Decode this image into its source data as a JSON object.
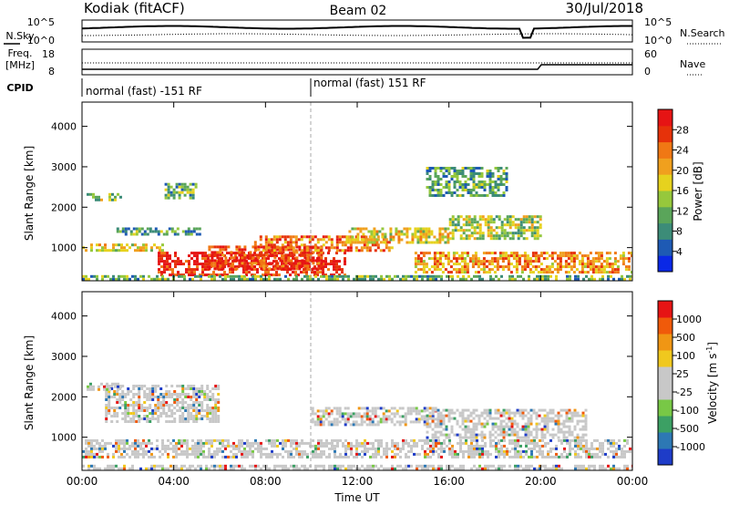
{
  "header": {
    "station": "Kodiak (fitACF)",
    "beam": "Beam 02",
    "date": "30/Jul/2018"
  },
  "top_panels": {
    "nsky_label": "N.Sky",
    "nsky_ticks": [
      "10^5",
      "10^0"
    ],
    "nsearch_label": "N.Search",
    "nsearch_ticks": [
      "10^5",
      "10^0"
    ],
    "freq_label": "Freq.",
    "freq_unit": "[MHz]",
    "freq_ticks": [
      "18",
      "8"
    ],
    "nave_label": "Nave",
    "nave_ticks": [
      "60",
      "0"
    ],
    "cpid_label": "CPID",
    "cpid_segments": [
      {
        "label": "normal (fast) -151 RF",
        "start_hour": 0,
        "end_hour": 10
      },
      {
        "label": "normal (fast) 151 RF",
        "start_hour": 10,
        "end_hour": 24
      }
    ]
  },
  "chart_data": [
    {
      "type": "heatmap",
      "name": "power",
      "ylabel": "Slant Range [km]",
      "y_ticks": [
        "1000",
        "2000",
        "3000",
        "4000"
      ],
      "ylim": [
        180,
        4600
      ],
      "xlim": [
        0,
        24
      ],
      "colorbar": {
        "label": "Power [dB]",
        "ticks": [
          "4",
          "8",
          "12",
          "16",
          "20",
          "24",
          "28"
        ],
        "range": [
          0,
          30
        ],
        "colors": [
          "#0a28e6",
          "#1e5ab4",
          "#3c8c78",
          "#5aa55a",
          "#96c83c",
          "#e6d21e",
          "#f0a01e",
          "#f07814",
          "#e6320a",
          "#e61414"
        ]
      },
      "echo_bands": [
        {
          "t0": 0.0,
          "t1": 3.5,
          "r0": 900,
          "r1": 1100,
          "level": 0.55
        },
        {
          "t0": 1.5,
          "t1": 5.2,
          "r0": 1350,
          "r1": 1500,
          "level": 0.3
        },
        {
          "t0": 0.2,
          "t1": 1.7,
          "r0": 2200,
          "r1": 2350,
          "level": 0.4
        },
        {
          "t0": 3.6,
          "t1": 5.0,
          "r0": 2200,
          "r1": 2600,
          "level": 0.35
        },
        {
          "t0": 3.3,
          "t1": 11.5,
          "r0": 300,
          "r1": 900,
          "level": 0.95
        },
        {
          "t0": 5.5,
          "t1": 10.5,
          "r0": 500,
          "r1": 1050,
          "level": 0.9
        },
        {
          "t0": 7.5,
          "t1": 13.5,
          "r0": 950,
          "r1": 1300,
          "level": 0.75
        },
        {
          "t0": 11.5,
          "t1": 16.0,
          "r0": 1100,
          "r1": 1500,
          "level": 0.55
        },
        {
          "t0": 14.5,
          "t1": 24.0,
          "r0": 400,
          "r1": 900,
          "level": 0.7
        },
        {
          "t0": 16.0,
          "t1": 20.0,
          "r0": 1200,
          "r1": 1800,
          "level": 0.45
        },
        {
          "t0": 15.0,
          "t1": 18.5,
          "r0": 2300,
          "r1": 3000,
          "level": 0.3
        },
        {
          "t0": 0.0,
          "t1": 24.0,
          "r0": 180,
          "r1": 320,
          "level": 0.35
        }
      ]
    },
    {
      "type": "heatmap",
      "name": "velocity",
      "ylabel": "Slant Range [km]",
      "y_ticks": [
        "1000",
        "2000",
        "3000",
        "4000"
      ],
      "ylim": [
        180,
        4600
      ],
      "xlim": [
        0,
        24
      ],
      "xlabel": "Time UT",
      "x_ticks": [
        "00:00",
        "04:00",
        "08:00",
        "12:00",
        "16:00",
        "20:00",
        "00:00"
      ],
      "colorbar": {
        "label": "Velocity [m s",
        "label_superscript": "-1",
        "label_close": "]",
        "ticks": [
          "1000",
          "500",
          "100",
          "25",
          "-25",
          "-100",
          "-500",
          "-1000"
        ],
        "colors": [
          "#1e3cc8",
          "#2d78b4",
          "#3ca064",
          "#78c846",
          "#c8c8c8",
          "#c8c8c8",
          "#f0c81e",
          "#f09614",
          "#f05a0a",
          "#e61414"
        ]
      },
      "echo_bands": [
        {
          "t0": 0.0,
          "t1": 24.0,
          "r0": 500,
          "r1": 950,
          "level": 0.5
        },
        {
          "t0": 10.0,
          "t1": 15.5,
          "r0": 1300,
          "r1": 1750,
          "level": 0.35
        },
        {
          "t0": 1.0,
          "t1": 6.0,
          "r0": 1400,
          "r1": 2300,
          "level": 0.5
        },
        {
          "t0": 0.2,
          "t1": 1.7,
          "r0": 2200,
          "r1": 2350,
          "level": 0.3
        },
        {
          "t0": 15.0,
          "t1": 22.0,
          "r0": 1000,
          "r1": 1700,
          "level": 0.55
        },
        {
          "t0": 0.0,
          "t1": 24.0,
          "r0": 180,
          "r1": 320,
          "level": 0.6
        }
      ]
    }
  ]
}
